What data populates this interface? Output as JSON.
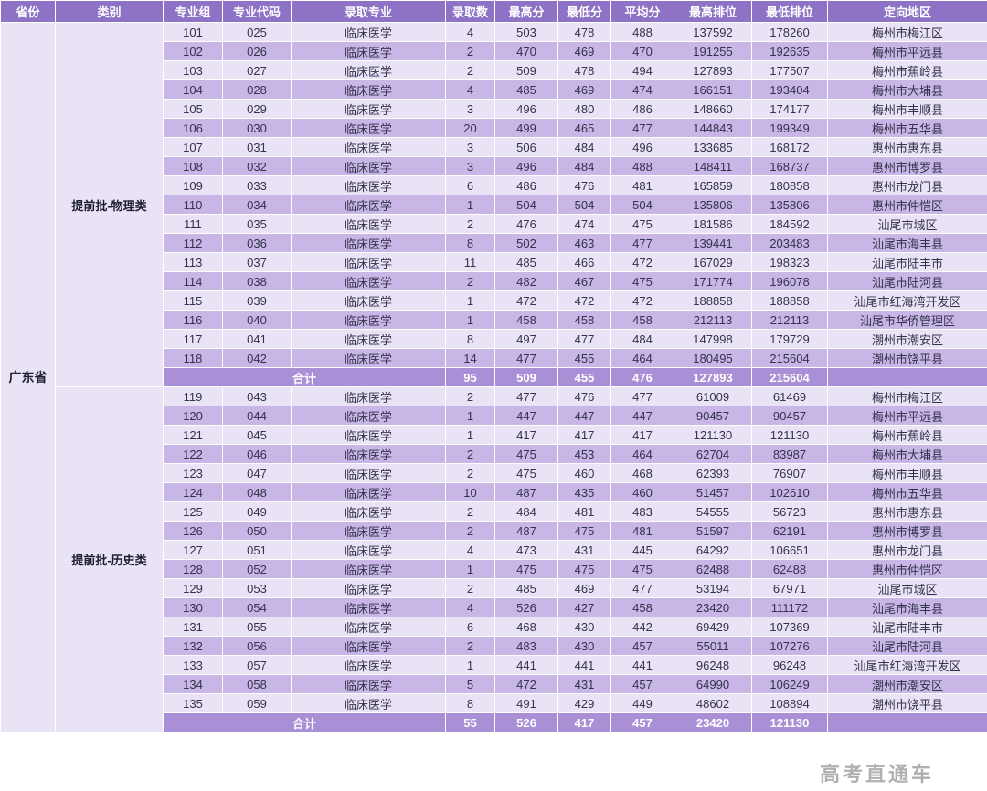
{
  "watermark": "高考直通车",
  "table": {
    "headers": [
      "省份",
      "类别",
      "专业组",
      "专业代码",
      "录取专业",
      "录取数",
      "最高分",
      "最低分",
      "平均分",
      "最高排位",
      "最低排位",
      "定向地区"
    ],
    "province": "广东省",
    "sections": [
      {
        "category": "提前批-物理类",
        "rows": [
          [
            "101",
            "025",
            "临床医学",
            "4",
            "503",
            "478",
            "488",
            "137592",
            "178260",
            "梅州市梅江区"
          ],
          [
            "102",
            "026",
            "临床医学",
            "2",
            "470",
            "469",
            "470",
            "191255",
            "192635",
            "梅州市平远县"
          ],
          [
            "103",
            "027",
            "临床医学",
            "2",
            "509",
            "478",
            "494",
            "127893",
            "177507",
            "梅州市蕉岭县"
          ],
          [
            "104",
            "028",
            "临床医学",
            "4",
            "485",
            "469",
            "474",
            "166151",
            "193404",
            "梅州市大埔县"
          ],
          [
            "105",
            "029",
            "临床医学",
            "3",
            "496",
            "480",
            "486",
            "148660",
            "174177",
            "梅州市丰顺县"
          ],
          [
            "106",
            "030",
            "临床医学",
            "20",
            "499",
            "465",
            "477",
            "144843",
            "199349",
            "梅州市五华县"
          ],
          [
            "107",
            "031",
            "临床医学",
            "3",
            "506",
            "484",
            "496",
            "133685",
            "168172",
            "惠州市惠东县"
          ],
          [
            "108",
            "032",
            "临床医学",
            "3",
            "496",
            "484",
            "488",
            "148411",
            "168737",
            "惠州市博罗县"
          ],
          [
            "109",
            "033",
            "临床医学",
            "6",
            "486",
            "476",
            "481",
            "165859",
            "180858",
            "惠州市龙门县"
          ],
          [
            "110",
            "034",
            "临床医学",
            "1",
            "504",
            "504",
            "504",
            "135806",
            "135806",
            "惠州市仲恺区"
          ],
          [
            "111",
            "035",
            "临床医学",
            "2",
            "476",
            "474",
            "475",
            "181586",
            "184592",
            "汕尾市城区"
          ],
          [
            "112",
            "036",
            "临床医学",
            "8",
            "502",
            "463",
            "477",
            "139441",
            "203483",
            "汕尾市海丰县"
          ],
          [
            "113",
            "037",
            "临床医学",
            "11",
            "485",
            "466",
            "472",
            "167029",
            "198323",
            "汕尾市陆丰市"
          ],
          [
            "114",
            "038",
            "临床医学",
            "2",
            "482",
            "467",
            "475",
            "171774",
            "196078",
            "汕尾市陆河县"
          ],
          [
            "115",
            "039",
            "临床医学",
            "1",
            "472",
            "472",
            "472",
            "188858",
            "188858",
            "汕尾市红海湾开发区"
          ],
          [
            "116",
            "040",
            "临床医学",
            "1",
            "458",
            "458",
            "458",
            "212113",
            "212113",
            "汕尾市华侨管理区"
          ],
          [
            "117",
            "041",
            "临床医学",
            "8",
            "497",
            "477",
            "484",
            "147998",
            "179729",
            "潮州市潮安区"
          ],
          [
            "118",
            "042",
            "临床医学",
            "14",
            "477",
            "455",
            "464",
            "180495",
            "215604",
            "潮州市饶平县"
          ]
        ],
        "total_label": "合计",
        "total": [
          "95",
          "509",
          "455",
          "476",
          "127893",
          "215604"
        ],
        "total_region": ""
      },
      {
        "category": "提前批-历史类",
        "rows": [
          [
            "119",
            "043",
            "临床医学",
            "2",
            "477",
            "476",
            "477",
            "61009",
            "61469",
            "梅州市梅江区"
          ],
          [
            "120",
            "044",
            "临床医学",
            "1",
            "447",
            "447",
            "447",
            "90457",
            "90457",
            "梅州市平远县"
          ],
          [
            "121",
            "045",
            "临床医学",
            "1",
            "417",
            "417",
            "417",
            "121130",
            "121130",
            "梅州市蕉岭县"
          ],
          [
            "122",
            "046",
            "临床医学",
            "2",
            "475",
            "453",
            "464",
            "62704",
            "83987",
            "梅州市大埔县"
          ],
          [
            "123",
            "047",
            "临床医学",
            "2",
            "475",
            "460",
            "468",
            "62393",
            "76907",
            "梅州市丰顺县"
          ],
          [
            "124",
            "048",
            "临床医学",
            "10",
            "487",
            "435",
            "460",
            "51457",
            "102610",
            "梅州市五华县"
          ],
          [
            "125",
            "049",
            "临床医学",
            "2",
            "484",
            "481",
            "483",
            "54555",
            "56723",
            "惠州市惠东县"
          ],
          [
            "126",
            "050",
            "临床医学",
            "2",
            "487",
            "475",
            "481",
            "51597",
            "62191",
            "惠州市博罗县"
          ],
          [
            "127",
            "051",
            "临床医学",
            "4",
            "473",
            "431",
            "445",
            "64292",
            "106651",
            "惠州市龙门县"
          ],
          [
            "128",
            "052",
            "临床医学",
            "1",
            "475",
            "475",
            "475",
            "62488",
            "62488",
            "惠州市仲恺区"
          ],
          [
            "129",
            "053",
            "临床医学",
            "2",
            "485",
            "469",
            "477",
            "53194",
            "67971",
            "汕尾市城区"
          ],
          [
            "130",
            "054",
            "临床医学",
            "4",
            "526",
            "427",
            "458",
            "23420",
            "111172",
            "汕尾市海丰县"
          ],
          [
            "131",
            "055",
            "临床医学",
            "6",
            "468",
            "430",
            "442",
            "69429",
            "107369",
            "汕尾市陆丰市"
          ],
          [
            "132",
            "056",
            "临床医学",
            "2",
            "483",
            "430",
            "457",
            "55011",
            "107276",
            "汕尾市陆河县"
          ],
          [
            "133",
            "057",
            "临床医学",
            "1",
            "441",
            "441",
            "441",
            "96248",
            "96248",
            "汕尾市红海湾开发区"
          ],
          [
            "134",
            "058",
            "临床医学",
            "5",
            "472",
            "431",
            "457",
            "64990",
            "106249",
            "潮州市潮安区"
          ],
          [
            "135",
            "059",
            "临床医学",
            "8",
            "491",
            "429",
            "449",
            "48602",
            "108894",
            "潮州市饶平县"
          ]
        ],
        "total_label": "合计",
        "total": [
          "55",
          "526",
          "417",
          "457",
          "23420",
          "121130"
        ],
        "total_region": ""
      }
    ]
  }
}
